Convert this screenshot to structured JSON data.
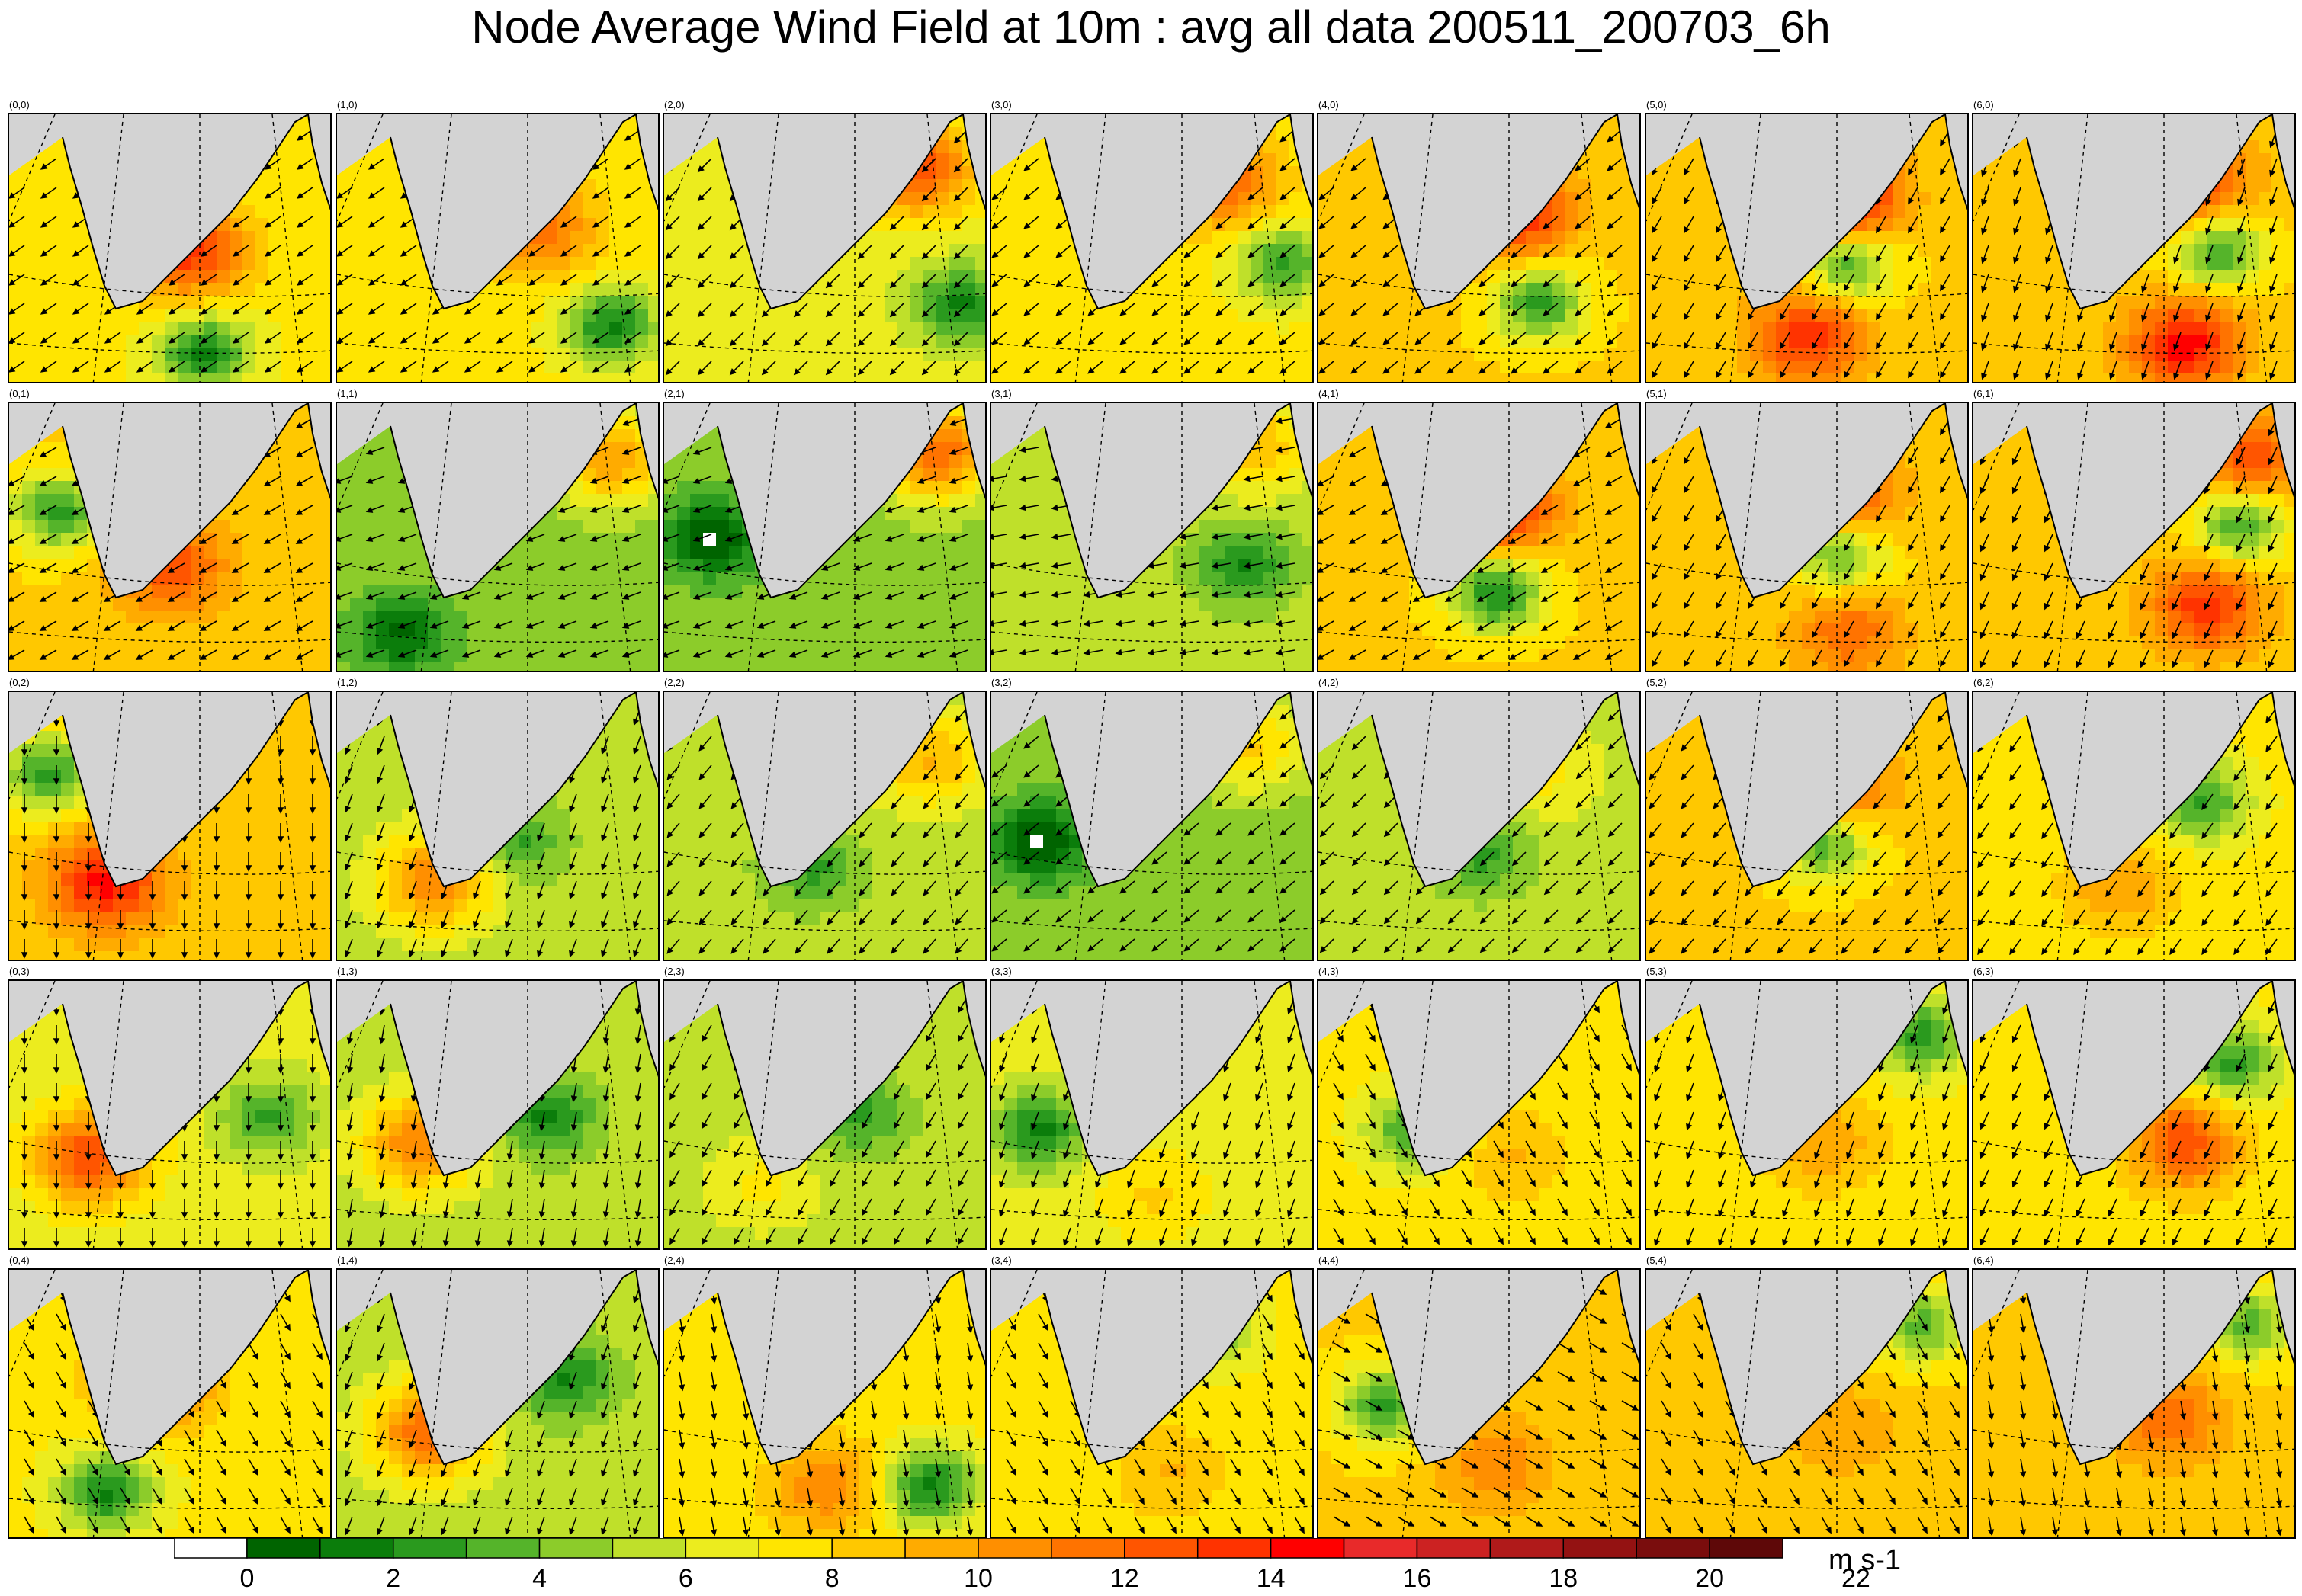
{
  "title": "Node Average Wind Field at 10m : avg all data 200511_200703_6h",
  "colors": {
    "land": "#d3d3d3",
    "scale": [
      "#ffffff",
      "#006400",
      "#0b7d0b",
      "#2a9a1e",
      "#55b42a",
      "#8ccc2a",
      "#bfe02a",
      "#ecec1e",
      "#ffe500",
      "#ffc800",
      "#ffab00",
      "#ff8f00",
      "#ff7300",
      "#ff5500",
      "#ff3300",
      "#ff0000",
      "#e82a2a",
      "#cc2222",
      "#b01a1a",
      "#941212",
      "#7a0d0d",
      "#5e0808"
    ]
  },
  "colorbar": {
    "unit": "m s-1",
    "tick_labels": [
      "0",
      "2",
      "4",
      "6",
      "8",
      "10",
      "12",
      "14",
      "16",
      "18",
      "20",
      "22"
    ]
  },
  "chart_data": {
    "type": "heatmap",
    "grid_columns": 7,
    "grid_rows": 5,
    "value_range": [
      0,
      24
    ],
    "panels": [
      {
        "label": "(0,0)",
        "base": 9,
        "jets": [
          {
            "u": 0.55,
            "v": 0.5,
            "s": 16
          }
        ],
        "lows": [
          {
            "u": 0.6,
            "v": 0.88,
            "s": 3
          }
        ],
        "wind_deg": 215
      },
      {
        "label": "(1,0)",
        "base": 9,
        "jets": [
          {
            "u": 0.62,
            "v": 0.42,
            "s": 14
          }
        ],
        "lows": [
          {
            "u": 0.85,
            "v": 0.78,
            "s": 3
          }
        ],
        "wind_deg": 215
      },
      {
        "label": "(2,0)",
        "base": 8,
        "jets": [
          {
            "u": 0.78,
            "v": 0.2,
            "s": 15
          }
        ],
        "lows": [
          {
            "u": 0.92,
            "v": 0.7,
            "s": 3
          }
        ],
        "wind_deg": 225
      },
      {
        "label": "(3,0)",
        "base": 9,
        "jets": [
          {
            "u": 0.72,
            "v": 0.25,
            "s": 14
          }
        ],
        "lows": [
          {
            "u": 0.9,
            "v": 0.55,
            "s": 4
          }
        ],
        "wind_deg": 220
      },
      {
        "label": "(4,0)",
        "base": 10,
        "jets": [
          {
            "u": 0.6,
            "v": 0.35,
            "s": 17
          }
        ],
        "lows": [
          {
            "u": 0.68,
            "v": 0.7,
            "s": 4
          }
        ],
        "wind_deg": 220
      },
      {
        "label": "(5,0)",
        "base": 10,
        "jets": [
          {
            "u": 0.6,
            "v": 0.3,
            "s": 19
          },
          {
            "u": 0.5,
            "v": 0.82,
            "s": 16
          }
        ],
        "lows": [
          {
            "u": 0.62,
            "v": 0.55,
            "s": 4
          }
        ],
        "wind_deg": 240
      },
      {
        "label": "(6,0)",
        "base": 10,
        "jets": [
          {
            "u": 0.68,
            "v": 0.25,
            "s": 16
          },
          {
            "u": 0.65,
            "v": 0.85,
            "s": 17
          }
        ],
        "lows": [
          {
            "u": 0.75,
            "v": 0.5,
            "s": 4
          }
        ],
        "wind_deg": 250
      },
      {
        "label": "(0,1)",
        "base": 10,
        "jets": [
          {
            "u": 0.5,
            "v": 0.6,
            "s": 15
          }
        ],
        "lows": [
          {
            "u": 0.15,
            "v": 0.4,
            "s": 4
          }
        ],
        "wind_deg": 210
      },
      {
        "label": "(1,1)",
        "base": 6,
        "jets": [
          {
            "u": 0.85,
            "v": 0.2,
            "s": 12
          }
        ],
        "lows": [
          {
            "u": 0.2,
            "v": 0.85,
            "s": 2
          }
        ],
        "wind_deg": 200
      },
      {
        "label": "(2,1)",
        "base": 6,
        "jets": [
          {
            "u": 0.85,
            "v": 0.18,
            "s": 14
          }
        ],
        "lows": [
          {
            "u": 0.15,
            "v": 0.5,
            "s": 1
          }
        ],
        "wind_deg": 200
      },
      {
        "label": "(3,1)",
        "base": 7,
        "jets": [
          {
            "u": 0.8,
            "v": 0.15,
            "s": 11
          }
        ],
        "lows": [
          {
            "u": 0.78,
            "v": 0.6,
            "s": 3
          }
        ],
        "wind_deg": 190
      },
      {
        "label": "(4,1)",
        "base": 10,
        "jets": [
          {
            "u": 0.55,
            "v": 0.38,
            "s": 17
          }
        ],
        "lows": [
          {
            "u": 0.55,
            "v": 0.7,
            "s": 3
          }
        ],
        "wind_deg": 210
      },
      {
        "label": "(5,1)",
        "base": 10,
        "jets": [
          {
            "u": 0.6,
            "v": 0.35,
            "s": 16
          },
          {
            "u": 0.62,
            "v": 0.85,
            "s": 14
          }
        ],
        "lows": [
          {
            "u": 0.6,
            "v": 0.55,
            "s": 4
          }
        ],
        "wind_deg": 240
      },
      {
        "label": "(6,1)",
        "base": 10,
        "jets": [
          {
            "u": 0.85,
            "v": 0.2,
            "s": 15
          },
          {
            "u": 0.72,
            "v": 0.75,
            "s": 16
          }
        ],
        "lows": [
          {
            "u": 0.82,
            "v": 0.45,
            "s": 4
          }
        ],
        "wind_deg": 245
      },
      {
        "label": "(0,2)",
        "base": 10,
        "jets": [
          {
            "u": 0.3,
            "v": 0.7,
            "s": 17
          }
        ],
        "lows": [
          {
            "u": 0.12,
            "v": 0.3,
            "s": 4
          }
        ],
        "wind_deg": 270
      },
      {
        "label": "(1,2)",
        "base": 7,
        "jets": [
          {
            "u": 0.3,
            "v": 0.7,
            "s": 13
          }
        ],
        "lows": [
          {
            "u": 0.55,
            "v": 0.55,
            "s": 4
          }
        ],
        "wind_deg": 250
      },
      {
        "label": "(2,2)",
        "base": 7,
        "jets": [
          {
            "u": 0.82,
            "v": 0.25,
            "s": 11
          }
        ],
        "lows": [
          {
            "u": 0.45,
            "v": 0.65,
            "s": 4
          }
        ],
        "wind_deg": 230
      },
      {
        "label": "(3,2)",
        "base": 6,
        "jets": [
          {
            "u": 0.8,
            "v": 0.2,
            "s": 10
          }
        ],
        "lows": [
          {
            "u": 0.15,
            "v": 0.55,
            "s": 1
          }
        ],
        "wind_deg": 220
      },
      {
        "label": "(4,2)",
        "base": 7,
        "jets": [
          {
            "u": 0.7,
            "v": 0.3,
            "s": 9
          }
        ],
        "lows": [
          {
            "u": 0.5,
            "v": 0.6,
            "s": 4
          }
        ],
        "wind_deg": 225
      },
      {
        "label": "(5,2)",
        "base": 10,
        "jets": [
          {
            "u": 0.58,
            "v": 0.35,
            "s": 15
          }
        ],
        "lows": [
          {
            "u": 0.55,
            "v": 0.55,
            "s": 4
          }
        ],
        "wind_deg": 230
      },
      {
        "label": "(6,2)",
        "base": 9,
        "jets": [
          {
            "u": 0.45,
            "v": 0.72,
            "s": 12
          }
        ],
        "lows": [
          {
            "u": 0.7,
            "v": 0.4,
            "s": 4
          }
        ],
        "wind_deg": 235
      },
      {
        "label": "(0,3)",
        "base": 8,
        "jets": [
          {
            "u": 0.25,
            "v": 0.65,
            "s": 15
          }
        ],
        "lows": [
          {
            "u": 0.8,
            "v": 0.5,
            "s": 4
          }
        ],
        "wind_deg": 270
      },
      {
        "label": "(1,3)",
        "base": 7,
        "jets": [
          {
            "u": 0.25,
            "v": 0.6,
            "s": 13
          }
        ],
        "lows": [
          {
            "u": 0.65,
            "v": 0.5,
            "s": 3
          }
        ],
        "wind_deg": 260
      },
      {
        "label": "(2,3)",
        "base": 7,
        "jets": [
          {
            "u": 0.3,
            "v": 0.75,
            "s": 9
          }
        ],
        "lows": [
          {
            "u": 0.6,
            "v": 0.5,
            "s": 4
          }
        ],
        "wind_deg": 240
      },
      {
        "label": "(3,3)",
        "base": 8,
        "jets": [
          {
            "u": 0.5,
            "v": 0.8,
            "s": 10
          }
        ],
        "lows": [
          {
            "u": 0.15,
            "v": 0.55,
            "s": 3
          }
        ],
        "wind_deg": 250
      },
      {
        "label": "(4,3)",
        "base": 9,
        "jets": [
          {
            "u": 0.6,
            "v": 0.65,
            "s": 11
          }
        ],
        "lows": [
          {
            "u": 0.3,
            "v": 0.55,
            "s": 4
          }
        ],
        "wind_deg": 300
      },
      {
        "label": "(5,3)",
        "base": 9,
        "jets": [
          {
            "u": 0.55,
            "v": 0.6,
            "s": 12
          }
        ],
        "lows": [
          {
            "u": 0.85,
            "v": 0.2,
            "s": 4
          }
        ],
        "wind_deg": 250
      },
      {
        "label": "(6,3)",
        "base": 9,
        "jets": [
          {
            "u": 0.65,
            "v": 0.6,
            "s": 15
          }
        ],
        "lows": [
          {
            "u": 0.8,
            "v": 0.3,
            "s": 4
          }
        ],
        "wind_deg": 245
      },
      {
        "label": "(0,4)",
        "base": 9,
        "jets": [
          {
            "u": 0.45,
            "v": 0.4,
            "s": 15
          }
        ],
        "lows": [
          {
            "u": 0.3,
            "v": 0.82,
            "s": 3
          }
        ],
        "wind_deg": 300
      },
      {
        "label": "(1,4)",
        "base": 7,
        "jets": [
          {
            "u": 0.28,
            "v": 0.6,
            "s": 14
          }
        ],
        "lows": [
          {
            "u": 0.7,
            "v": 0.4,
            "s": 3
          }
        ],
        "wind_deg": 250
      },
      {
        "label": "(2,4)",
        "base": 9,
        "jets": [
          {
            "u": 0.5,
            "v": 0.8,
            "s": 13
          }
        ],
        "lows": [
          {
            "u": 0.82,
            "v": 0.8,
            "s": 3
          }
        ],
        "wind_deg": 280
      },
      {
        "label": "(3,4)",
        "base": 9,
        "jets": [
          {
            "u": 0.55,
            "v": 0.75,
            "s": 11
          }
        ],
        "lows": [
          {
            "u": 0.65,
            "v": 0.2,
            "s": 4
          }
        ],
        "wind_deg": 300
      },
      {
        "label": "(4,4)",
        "base": 10,
        "jets": [
          {
            "u": 0.55,
            "v": 0.72,
            "s": 13
          }
        ],
        "lows": [
          {
            "u": 0.2,
            "v": 0.5,
            "s": 4
          }
        ],
        "wind_deg": 330
      },
      {
        "label": "(5,4)",
        "base": 10,
        "jets": [
          {
            "u": 0.6,
            "v": 0.6,
            "s": 12
          }
        ],
        "lows": [
          {
            "u": 0.85,
            "v": 0.2,
            "s": 5
          }
        ],
        "wind_deg": 300
      },
      {
        "label": "(6,4)",
        "base": 10,
        "jets": [
          {
            "u": 0.6,
            "v": 0.55,
            "s": 14
          }
        ],
        "lows": [
          {
            "u": 0.85,
            "v": 0.2,
            "s": 5
          }
        ],
        "wind_deg": 280
      }
    ]
  }
}
